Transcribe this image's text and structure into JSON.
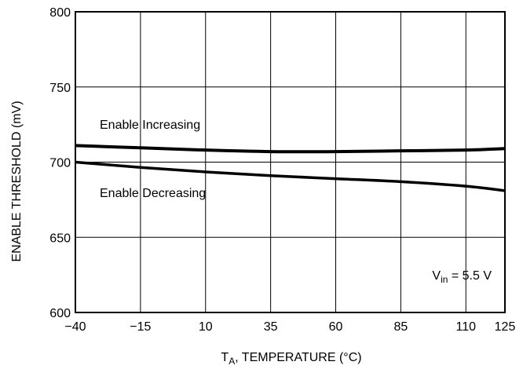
{
  "chart_data": {
    "type": "line",
    "title": "",
    "xlabel": {
      "main": "T",
      "sub": "A",
      "rest": ", TEMPERATURE (°C)"
    },
    "ylabel": "ENABLE THRESHOLD (mV)",
    "xlim": [
      -40,
      125
    ],
    "ylim": [
      600,
      800
    ],
    "x_ticks": [
      -40,
      -15,
      10,
      35,
      60,
      85,
      110,
      125
    ],
    "x_tick_labels": [
      "−40",
      "−15",
      "10",
      "35",
      "60",
      "85",
      "110",
      "125"
    ],
    "y_ticks": [
      600,
      650,
      700,
      750,
      800
    ],
    "y_tick_labels": [
      "600",
      "650",
      "700",
      "750",
      "800"
    ],
    "grid": true,
    "series": [
      {
        "name": "Enable Increasing",
        "x": [
          -40,
          -15,
          10,
          35,
          60,
          85,
          110,
          125
        ],
        "y": [
          711,
          709.5,
          708,
          707,
          707,
          707.5,
          708,
          709
        ]
      },
      {
        "name": "Enable Decreasing",
        "x": [
          -40,
          -15,
          10,
          35,
          60,
          85,
          110,
          125
        ],
        "y": [
          700,
          696.5,
          693.5,
          691,
          689,
          687,
          684,
          681
        ]
      }
    ],
    "annotations": {
      "condition": {
        "main": "V",
        "sub": "in",
        "rest": " = 5.5 V"
      }
    },
    "colors": {
      "line": "#000000",
      "grid": "#000000",
      "background": "#ffffff"
    }
  }
}
